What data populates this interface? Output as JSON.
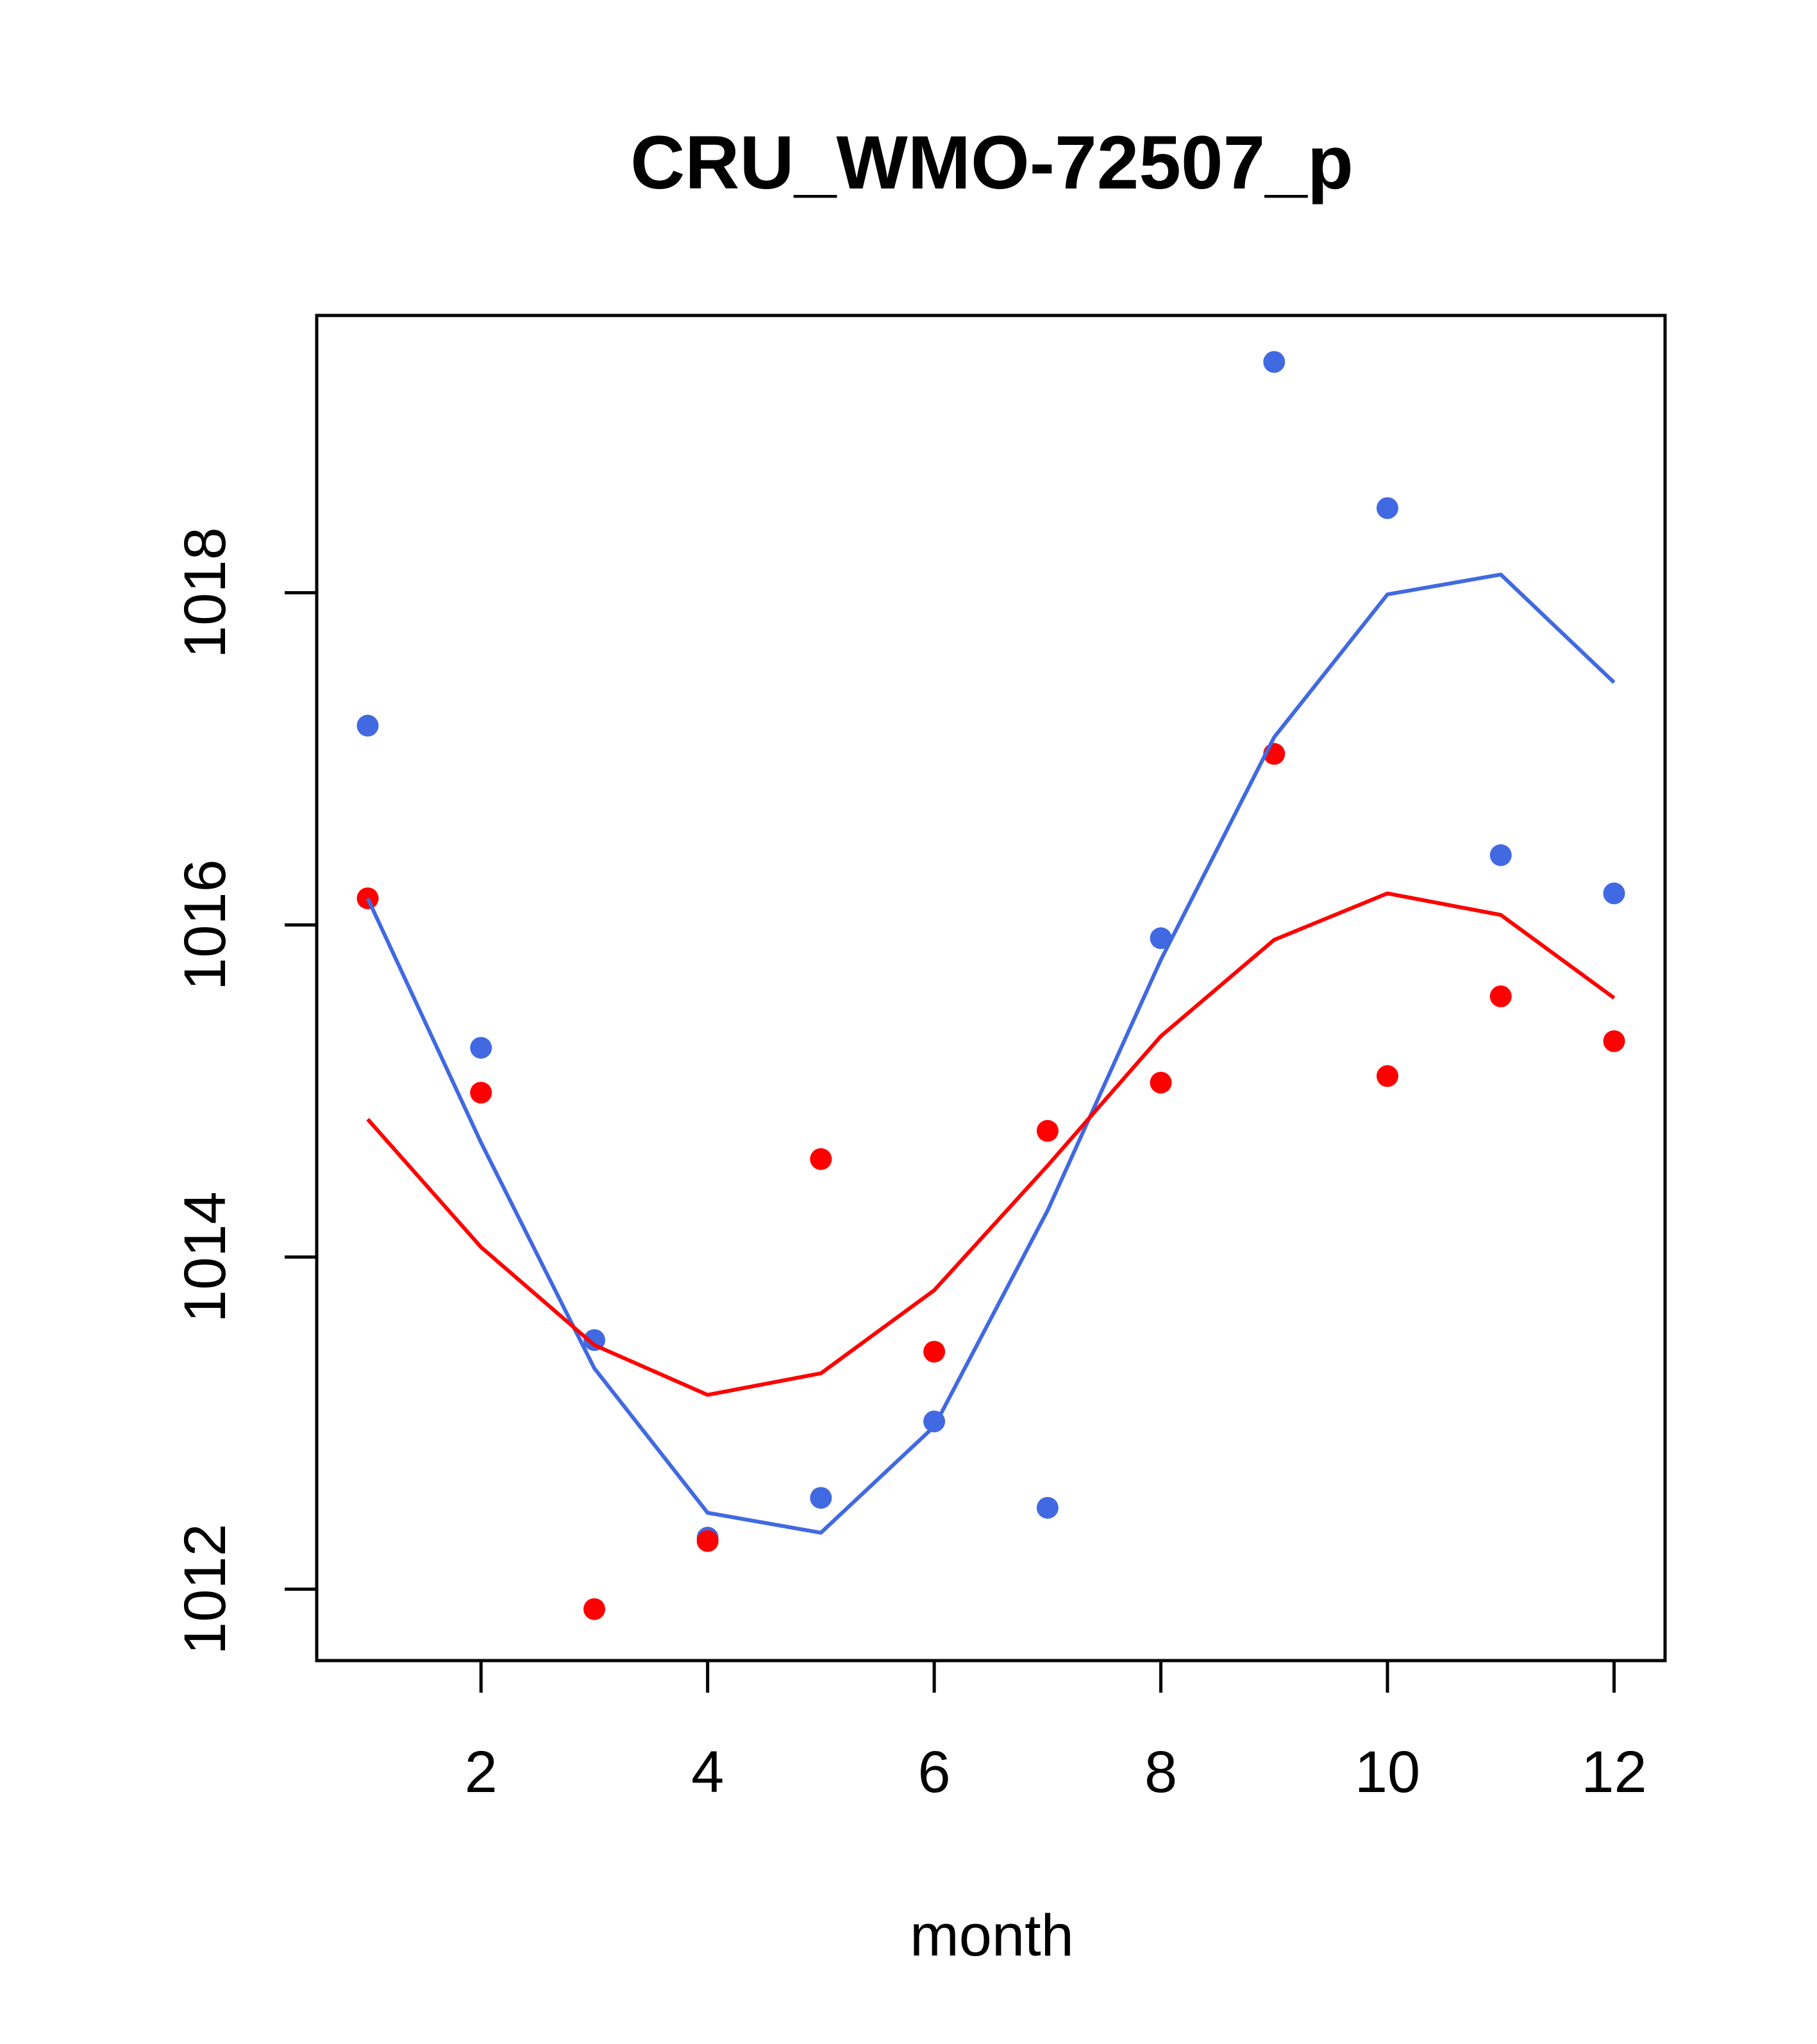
{
  "chart_data": {
    "type": "line",
    "title": "CRU_WMO-72507_p",
    "xlabel": "month",
    "ylabel": "",
    "xlim": [
      0.55,
      12.45
    ],
    "ylim": [
      1011.57,
      1019.67
    ],
    "x_ticks": [
      2,
      4,
      6,
      8,
      10,
      12
    ],
    "x_tick_labels": [
      "2",
      "4",
      "6",
      "8",
      "10",
      "12"
    ],
    "y_ticks": [
      1012,
      1014,
      1016,
      1018
    ],
    "y_tick_labels": [
      "1012",
      "1014",
      "1016",
      "1018"
    ],
    "x": [
      1,
      2,
      3,
      4,
      5,
      6,
      7,
      8,
      9,
      10,
      11,
      12
    ],
    "series": [
      {
        "name": "blue points",
        "kind": "points",
        "color": "#4169E1",
        "values": [
          1017.2,
          1015.26,
          1013.5,
          1012.31,
          1012.55,
          1013.01,
          1012.49,
          1015.92,
          1019.39,
          1018.51,
          1016.42,
          1016.19
        ]
      },
      {
        "name": "red points",
        "kind": "points",
        "color": "#FF0000",
        "values": [
          1016.16,
          1014.99,
          1011.88,
          1012.29,
          1014.59,
          1013.43,
          1014.76,
          1015.05,
          1017.03,
          1015.09,
          1015.57,
          1015.3
        ]
      },
      {
        "name": "blue line",
        "kind": "line",
        "color": "#4169E1",
        "values": [
          1016.16,
          1014.69,
          1013.33,
          1012.46,
          1012.34,
          1012.98,
          1014.28,
          1015.79,
          1017.13,
          1017.99,
          1018.11,
          1017.46
        ]
      },
      {
        "name": "red line",
        "kind": "line",
        "color": "#FF0000",
        "values": [
          1014.83,
          1014.06,
          1013.47,
          1013.17,
          1013.3,
          1013.8,
          1014.55,
          1015.33,
          1015.91,
          1016.19,
          1016.06,
          1015.56
        ]
      }
    ]
  }
}
